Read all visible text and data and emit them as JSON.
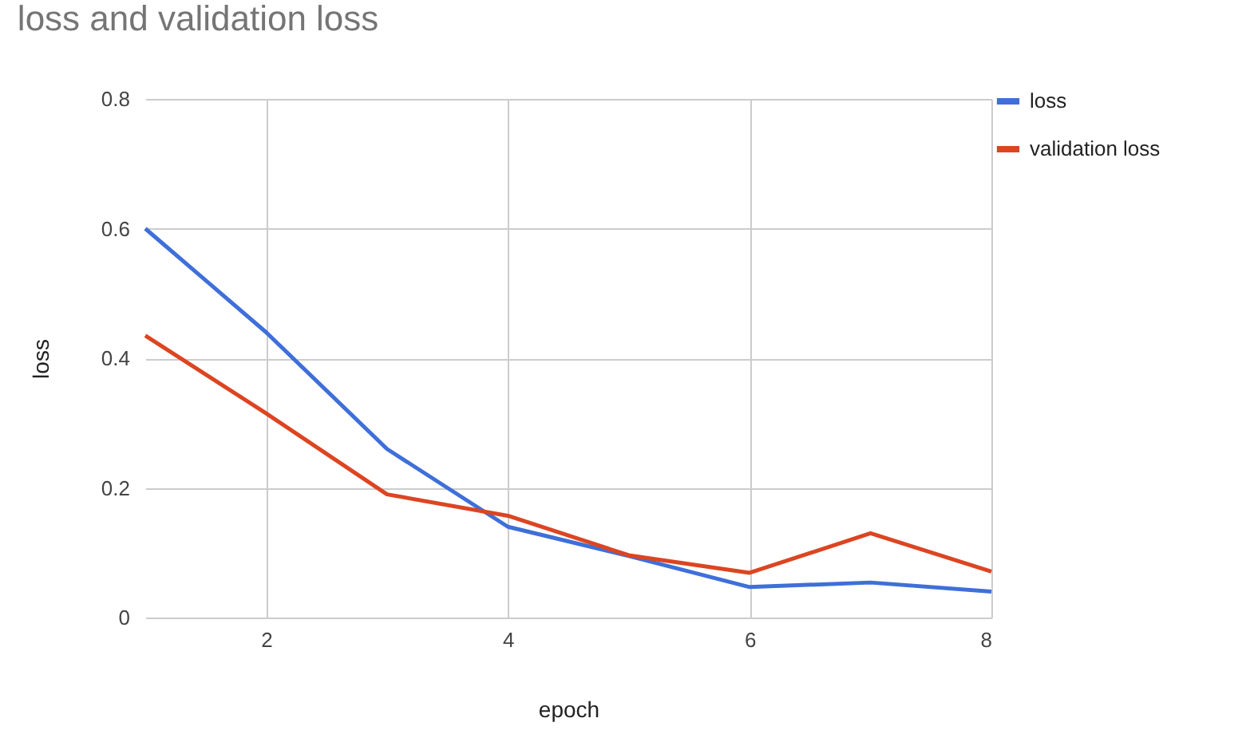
{
  "chart_data": {
    "type": "line",
    "title": "loss and validation loss",
    "xlabel": "epoch",
    "ylabel": "loss",
    "x": [
      1,
      2,
      3,
      4,
      5,
      6,
      7,
      8
    ],
    "series": [
      {
        "name": "loss",
        "color": "#3f6fd8",
        "values": [
          0.6,
          0.44,
          0.26,
          0.14,
          0.095,
          0.047,
          0.054,
          0.04
        ]
      },
      {
        "name": "validation loss",
        "color": "#dc4522",
        "values": [
          0.435,
          0.315,
          0.19,
          0.157,
          0.096,
          0.069,
          0.13,
          0.071
        ]
      }
    ],
    "xlim": [
      1,
      8
    ],
    "xticks": [
      2,
      4,
      6,
      8
    ],
    "ylim": [
      0,
      0.8
    ],
    "yticks": [
      0,
      0.2,
      0.4,
      0.6,
      0.8
    ],
    "grid": true,
    "legend": "top right",
    "marker": "none",
    "line_style": "solid"
  }
}
